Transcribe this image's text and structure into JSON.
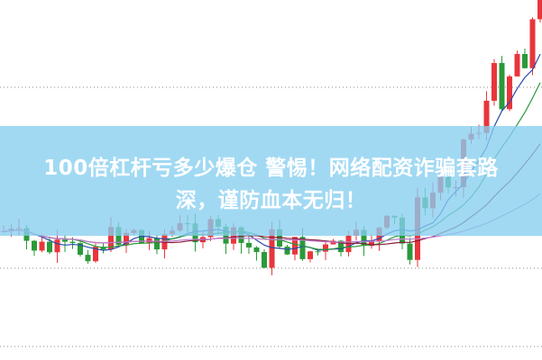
{
  "banner": {
    "title_lines": [
      "100倍杠杆亏多少爆仓 警惕！网络配资诈骗套路",
      "深，谨防血本无归！"
    ]
  }
}
